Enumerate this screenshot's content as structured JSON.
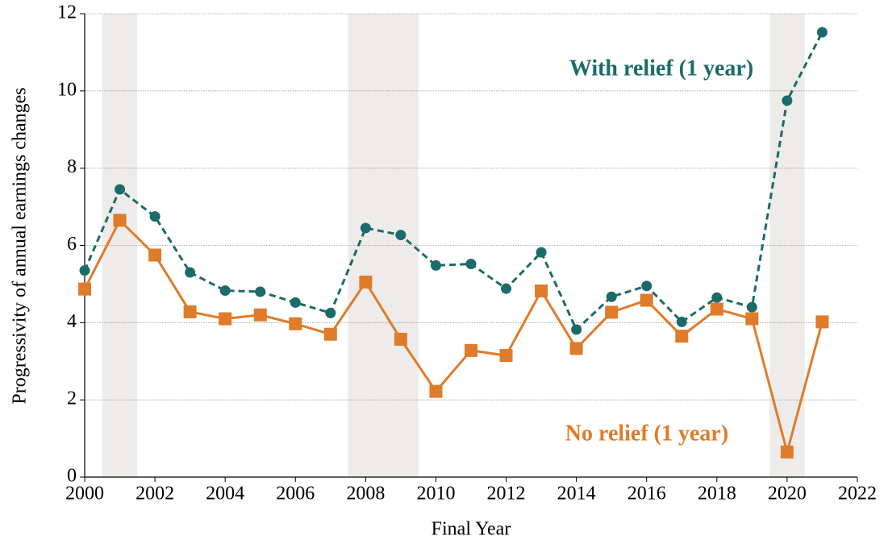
{
  "chart_data": {
    "type": "line",
    "x_label": "Final Year",
    "y_label": "Progressivity of annual earnings changes",
    "x": [
      2000,
      2001,
      2002,
      2003,
      2004,
      2005,
      2006,
      2007,
      2008,
      2009,
      2010,
      2011,
      2012,
      2013,
      2014,
      2015,
      2016,
      2017,
      2018,
      2019,
      2020,
      2021
    ],
    "series": [
      {
        "name": "With relief (1 year)",
        "color": "#1b6b6b",
        "dashed": true,
        "marker": "circle",
        "values": [
          5.35,
          7.45,
          6.75,
          5.3,
          4.83,
          4.8,
          4.52,
          4.25,
          6.45,
          6.27,
          5.48,
          5.52,
          4.88,
          5.82,
          3.82,
          4.67,
          4.95,
          4.02,
          4.65,
          4.4,
          9.75,
          11.52
        ]
      },
      {
        "name": "No relief (1 year)",
        "color": "#e07b2a",
        "dashed": false,
        "marker": "square",
        "values": [
          4.87,
          6.65,
          5.75,
          4.28,
          4.1,
          4.2,
          3.97,
          3.7,
          5.05,
          3.57,
          2.22,
          3.28,
          3.15,
          4.82,
          3.33,
          4.27,
          4.58,
          3.65,
          4.35,
          4.1,
          0.65,
          4.02
        ]
      }
    ],
    "shaded_regions": [
      [
        2000.5,
        2001.5
      ],
      [
        2007.5,
        2009.5
      ],
      [
        2019.5,
        2020.5
      ]
    ],
    "shade_color": "#eeecea",
    "xlim": [
      2000,
      2022
    ],
    "xticks": [
      2000,
      2002,
      2004,
      2006,
      2008,
      2010,
      2012,
      2014,
      2016,
      2018,
      2020,
      2022
    ],
    "ylim": [
      0,
      12
    ],
    "yticks": [
      0,
      2,
      4,
      6,
      8,
      10,
      12
    ],
    "grid": true
  }
}
